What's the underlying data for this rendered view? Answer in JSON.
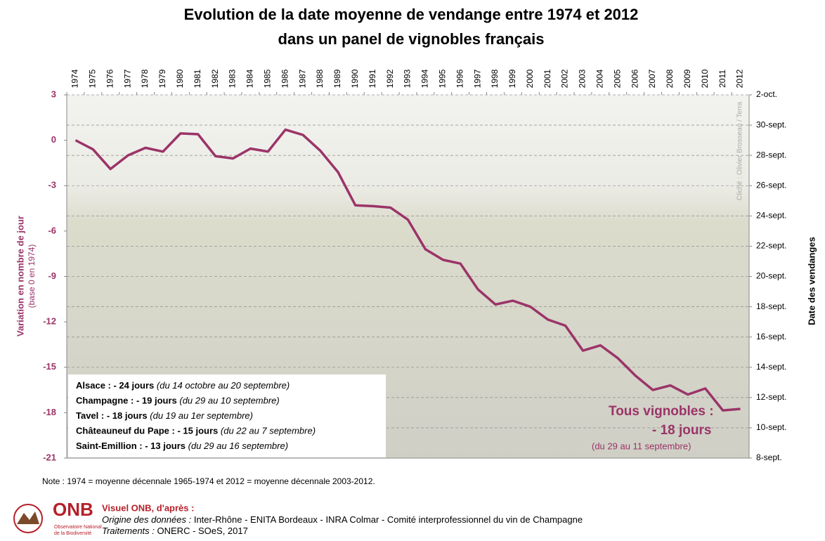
{
  "chart_data": {
    "type": "line",
    "title": [
      "Evolution de la date moyenne de vendange entre 1974 et 2012",
      "dans un panel de vignobles français"
    ],
    "y_label": [
      "Variation en nombre de jour",
      "(base 0 en 1974)"
    ],
    "y2_label": "Date des vendanges",
    "credit": "Cliché : Olivier Brosseau / Terra",
    "categories": [
      "1974",
      "1975",
      "1976",
      "1977",
      "1978",
      "1979",
      "1980",
      "1981",
      "1982",
      "1983",
      "1984",
      "1985",
      "1986",
      "1987",
      "1988",
      "1989",
      "1990",
      "1991",
      "1992",
      "1993",
      "1994",
      "1995",
      "1996",
      "1997",
      "1998",
      "1999",
      "2000",
      "2001",
      "2002",
      "2003",
      "2004",
      "2005",
      "2006",
      "2007",
      "2008",
      "2009",
      "2010",
      "2011",
      "2012"
    ],
    "series": [
      {
        "name": "Tous vignobles",
        "color": "#9b3468",
        "values": [
          0,
          -0.6,
          -1.9,
          -1,
          -0.5,
          -0.75,
          0.45,
          0.4,
          -1.05,
          -1.2,
          -0.55,
          -0.75,
          0.7,
          0.35,
          -0.7,
          -2.1,
          -4.3,
          -4.35,
          -4.45,
          -5.25,
          -7.2,
          -7.9,
          -8.15,
          -9.85,
          -10.85,
          -10.6,
          -11,
          -11.85,
          -12.25,
          -13.9,
          -13.55,
          -14.4,
          -15.55,
          -16.5,
          -16.2,
          -16.8,
          -16.4,
          -17.85,
          -17.75
        ]
      }
    ],
    "ylim": [
      -21,
      3
    ],
    "yticks": [
      3,
      0,
      -3,
      -6,
      -9,
      -12,
      -15,
      -18,
      -21
    ],
    "y2lim": [
      -21,
      3
    ],
    "y2ticks": [
      {
        "value": 3,
        "label": "2-oct."
      },
      {
        "value": 1,
        "label": "30-sept."
      },
      {
        "value": -1,
        "label": "28-sept."
      },
      {
        "value": -3,
        "label": "26-sept."
      },
      {
        "value": -5,
        "label": "24-sept."
      },
      {
        "value": -7,
        "label": "22-sept."
      },
      {
        "value": -9,
        "label": "20-sept."
      },
      {
        "value": -11,
        "label": "18-sept."
      },
      {
        "value": -13,
        "label": "16-sept."
      },
      {
        "value": -15,
        "label": "14-sept."
      },
      {
        "value": -17,
        "label": "12-sept."
      },
      {
        "value": -19,
        "label": "10-sept."
      },
      {
        "value": -21,
        "label": "8-sept."
      }
    ],
    "grid": true,
    "legend_box": [
      {
        "bold": "Alsace : - 24 jours",
        "detail": "(du 14 octobre au 20 septembre)"
      },
      {
        "bold": "Champagne : - 19 jours",
        "detail": "(du 29 au 10 septembre)"
      },
      {
        "bold": "Tavel : - 18 jours",
        "detail": "(du 19 au 1er septembre)"
      },
      {
        "bold": "Châteauneuf du Pape : - 15 jours",
        "detail": "(du 22 au 7 septembre)"
      },
      {
        "bold": "Saint-Emillion : - 13 jours",
        "detail": "(du 29 au 16 septembre)"
      }
    ],
    "annotation": [
      "Tous vignobles :",
      "- 18 jours",
      "(du 29 au 11 septembre)"
    ],
    "note": "Note : 1974 = moyenne décennale 1965-1974 et 2012 = moyenne décennale 2003-2012.",
    "footer": {
      "logo": "ONB",
      "logo_sub": [
        "Observatoire National",
        "de la Biodiversité"
      ],
      "heading": "Visuel ONB, d'après :",
      "origin_label": "Origine des données :",
      "origin": "Inter-Rhône - ENITA Bordeaux - INRA Colmar - Comité interprofessionnel du vin de Champagne",
      "treat_label": "Traitements :",
      "treat": "ONERC - SOeS, 2017"
    }
  }
}
